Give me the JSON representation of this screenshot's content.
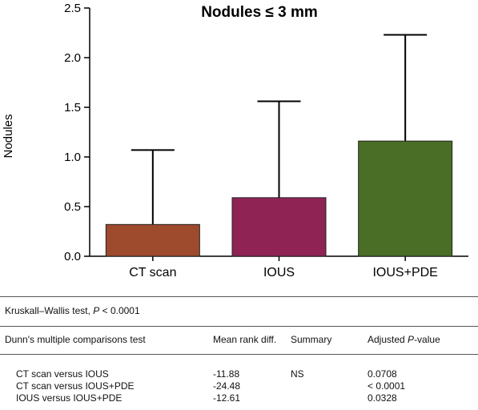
{
  "chart_data": {
    "type": "bar",
    "title": "Nodules ≤ 3 mm",
    "ylabel": "Nodules",
    "xlabel": "",
    "categories": [
      "CT scan",
      "IOUS",
      "IOUS+PDE"
    ],
    "values": [
      0.32,
      0.59,
      1.16
    ],
    "error_upper": [
      1.07,
      1.56,
      2.23
    ],
    "colors": [
      "#9e4a2c",
      "#8f2454",
      "#4a6e25"
    ],
    "ylim": [
      0,
      2.5
    ],
    "yticks": [
      "0.0",
      "0.5",
      "1.0",
      "1.5",
      "2.0",
      "2.5"
    ],
    "grid": false
  },
  "stats": {
    "kruskal": {
      "text": "Kruskall–Wallis test, ",
      "p_label": "P",
      "p_value": " < 0.0001"
    },
    "header": {
      "test": "Dunn's multiple comparisons test",
      "diff": "Mean rank diff.",
      "summary": "Summary",
      "adj_prefix": "Adjusted ",
      "adj_p": "P",
      "adj_suffix": "-value"
    },
    "rows": [
      {
        "comparison": "CT scan versus IOUS",
        "diff": "-11.88",
        "summary": "NS",
        "p": "0.0708"
      },
      {
        "comparison": "CT scan versus IOUS+PDE",
        "diff": "-24.48",
        "summary": "",
        "p": "< 0.0001"
      },
      {
        "comparison": "IOUS versus IOUS+PDE",
        "diff": "-12.61",
        "summary": "",
        "p": "0.0328"
      }
    ]
  }
}
